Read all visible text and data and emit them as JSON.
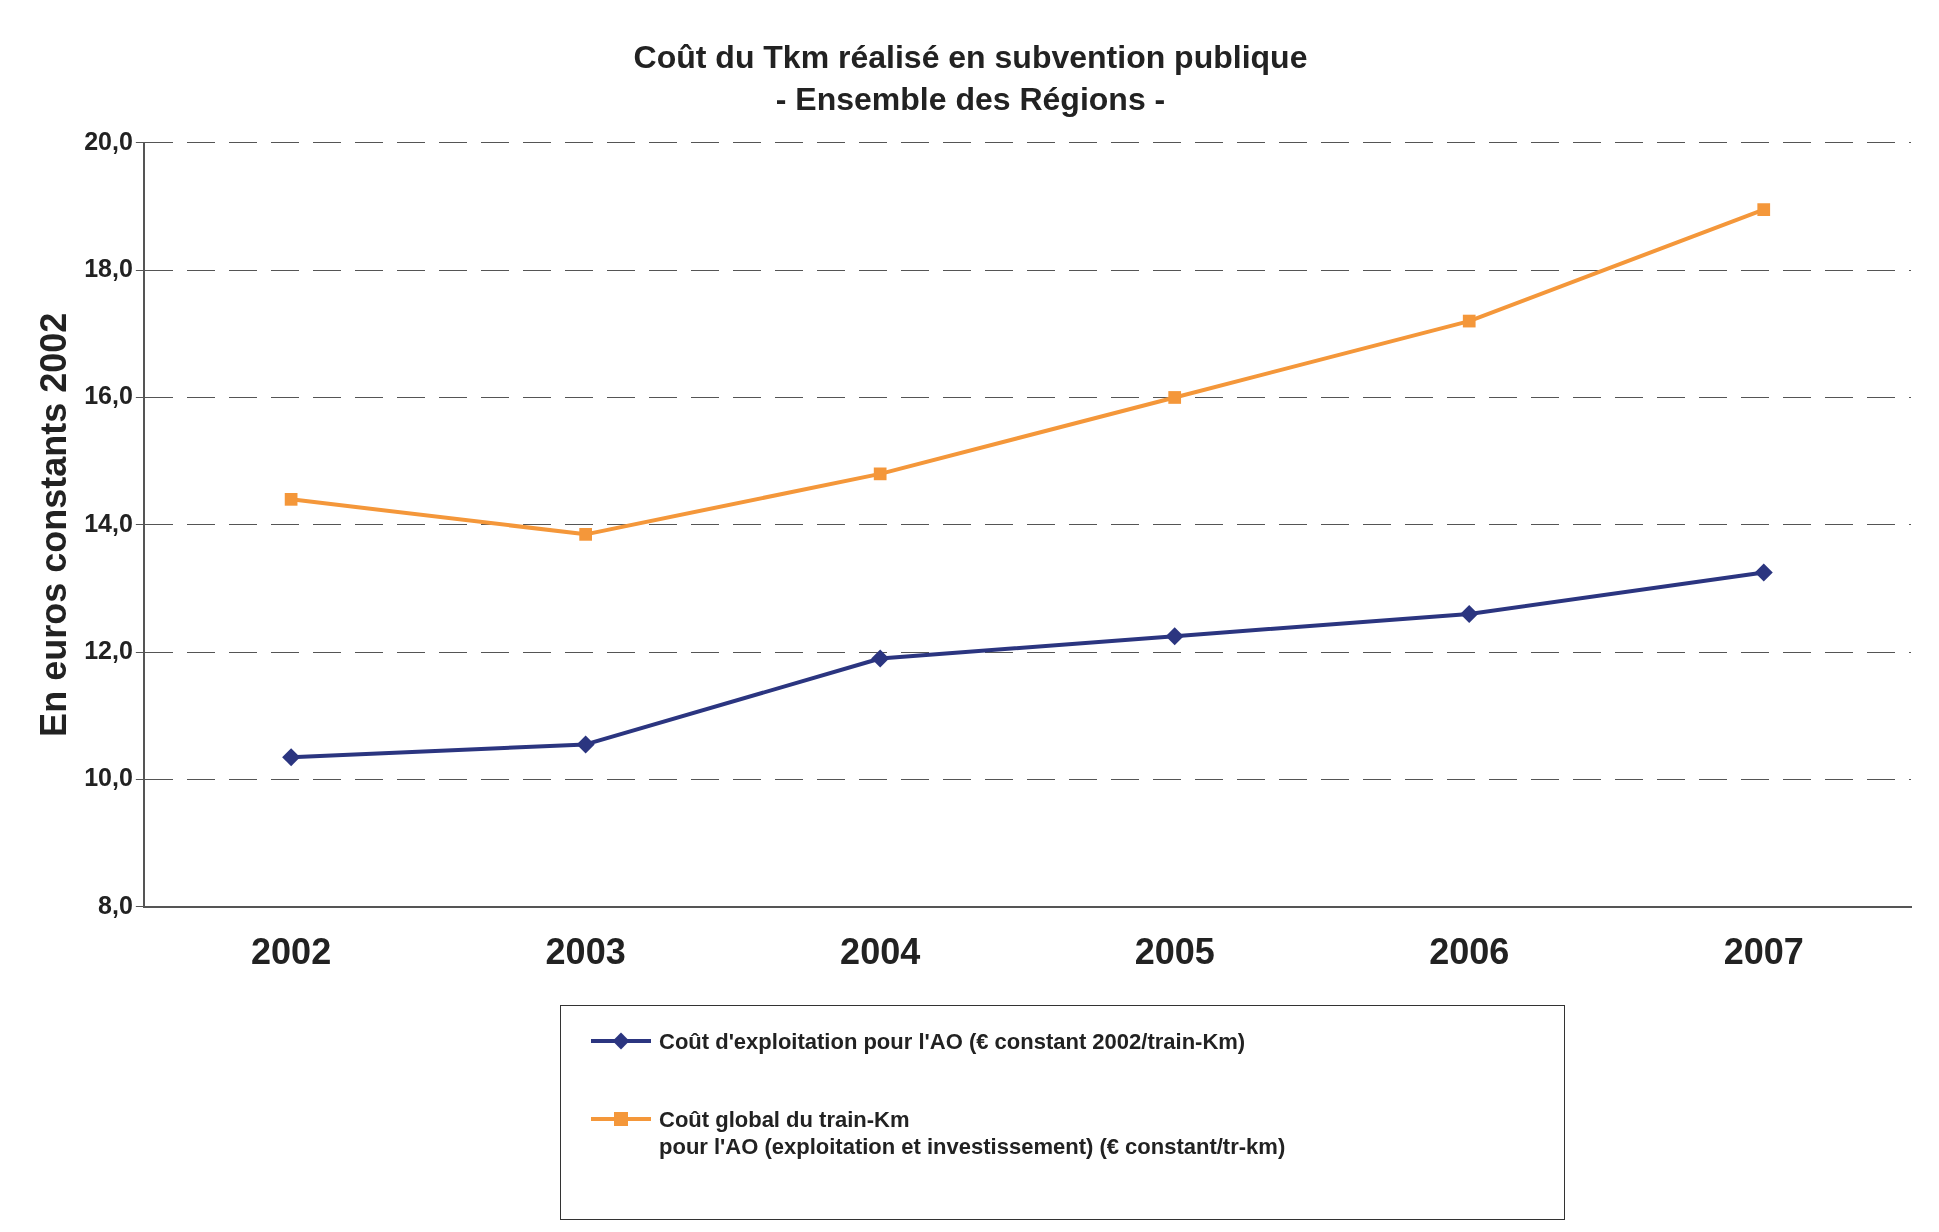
{
  "chart_data": {
    "type": "line",
    "title": "Coût du Tkm réalisé en subvention publique",
    "subtitle": "- Ensemble des Régions -",
    "ylabel": "En euros constants 2002",
    "categories": [
      "2002",
      "2003",
      "2004",
      "2005",
      "2006",
      "2007"
    ],
    "series": [
      {
        "name": "Coût d'exploitation pour l'AO (€ constant 2002/train-Km)",
        "color": "#2b3580",
        "marker": "diamond",
        "values": [
          10.35,
          10.55,
          11.9,
          12.25,
          12.6,
          13.25
        ]
      },
      {
        "name": "Coût global du train-Km\npour l'AO (exploitation et investissement) (€ constant/tr-km)",
        "color": "#f4973a",
        "marker": "square",
        "values": [
          14.4,
          13.85,
          14.8,
          16.0,
          17.2,
          18.95
        ]
      }
    ],
    "ylim": [
      8,
      20
    ],
    "yticks": [
      {
        "value": 8,
        "label": "8,0"
      },
      {
        "value": 10,
        "label": "10,0"
      },
      {
        "value": 12,
        "label": "12,0"
      },
      {
        "value": 14,
        "label": "14,0"
      },
      {
        "value": 16,
        "label": "16,0"
      },
      {
        "value": 18,
        "label": "18,0"
      },
      {
        "value": 20,
        "label": "20,0"
      }
    ],
    "grid": "y",
    "legend": "bottom",
    "line_style": "solid"
  }
}
